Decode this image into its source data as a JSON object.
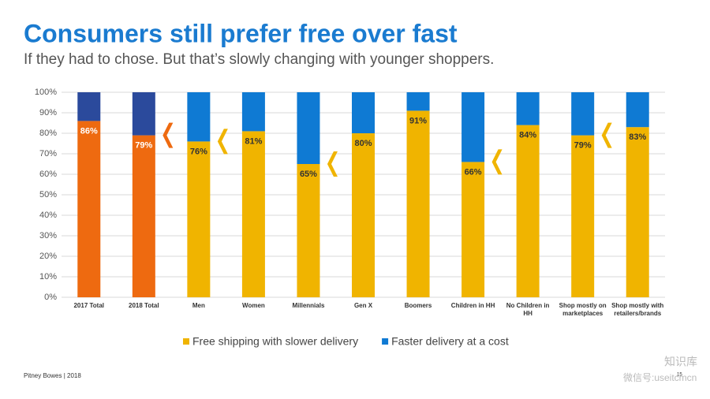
{
  "title": "Consumers still prefer free over fast",
  "subtitle": "If they had to chose. But that’s slowly changing with younger shoppers.",
  "footer": "Pitney Bowes | 2018",
  "page_number": "15",
  "watermark": [
    "知识库",
    "微信号:useitcmcn"
  ],
  "chart_data": {
    "type": "stacked_bar",
    "categories": [
      "2017 Total",
      "2018 Total",
      "Men",
      "Women",
      "Millennials",
      "Gen X",
      "Boomers",
      "Children in HH",
      "No Children in HH",
      "Shop mostly on marketplaces",
      "Shop mostly with retailers/brands"
    ],
    "series": [
      {
        "name": "Free shipping with slower delivery",
        "color": "#f0b400",
        "colors": [
          "#ee6a10",
          "#ee6a10",
          "#f0b400",
          "#f0b400",
          "#f0b400",
          "#f0b400",
          "#f0b400",
          "#f0b400",
          "#f0b400",
          "#f0b400",
          "#f0b400"
        ],
        "values": [
          86,
          79,
          76,
          81,
          65,
          80,
          91,
          66,
          84,
          79,
          83
        ],
        "value_labels": [
          "86%",
          "79%",
          "76%",
          "81%",
          "65%",
          "80%",
          "91%",
          "66%",
          "84%",
          "79%",
          "83%"
        ]
      },
      {
        "name": "Faster delivery at a cost",
        "color": "#0f7ad3",
        "colors": [
          "#2b4a9c",
          "#2b4a9c",
          "#0f7ad3",
          "#0f7ad3",
          "#0f7ad3",
          "#0f7ad3",
          "#0f7ad3",
          "#0f7ad3",
          "#0f7ad3",
          "#0f7ad3",
          "#0f7ad3"
        ],
        "values": [
          14,
          21,
          24,
          19,
          35,
          20,
          9,
          34,
          16,
          21,
          17
        ]
      }
    ],
    "chevrons": [
      false,
      true,
      true,
      false,
      true,
      false,
      false,
      true,
      false,
      true,
      false
    ],
    "chevron_colors": [
      "#ee6a10",
      "#ee6a10",
      "#f0b400",
      "#f0b400",
      "#f0b400",
      "#f0b400",
      "#f0b400",
      "#f0b400",
      "#f0b400",
      "#f0b400",
      "#f0b400"
    ],
    "ylim": [
      0,
      100
    ],
    "yticks": [
      {
        "value": 0,
        "label": "0%"
      },
      {
        "value": 10,
        "label": "10%"
      },
      {
        "value": 20,
        "label": "20%"
      },
      {
        "value": 30,
        "label": "30%"
      },
      {
        "value": 40,
        "label": "40%"
      },
      {
        "value": 50,
        "label": "50%"
      },
      {
        "value": 60,
        "label": "60%"
      },
      {
        "value": 70,
        "label": "70%"
      },
      {
        "value": 80,
        "label": "80%"
      },
      {
        "value": 90,
        "label": "90%"
      },
      {
        "value": 100,
        "label": "100%"
      }
    ],
    "grid": true
  }
}
